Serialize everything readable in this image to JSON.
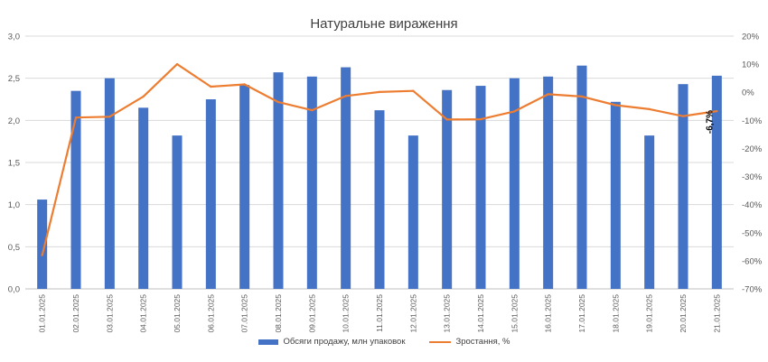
{
  "chart_data": {
    "type": "bar",
    "title": "Натуральне вираження",
    "categories": [
      "01.01.2025",
      "02.01.2025",
      "03.01.2025",
      "04.01.2025",
      "05.01.2025",
      "06.01.2025",
      "07.01.2025",
      "08.01.2025",
      "09.01.2025",
      "10.01.2025",
      "11.01.2025",
      "12.01.2025",
      "13.01.2025",
      "14.01.2025",
      "15.01.2025",
      "16.01.2025",
      "17.01.2025",
      "18.01.2025",
      "19.01.2025",
      "20.01.2025",
      "21.01.2025"
    ],
    "y_left": {
      "min": 0,
      "max": 3,
      "step": 0.5,
      "ticks": [
        "0,0",
        "0,5",
        "1,0",
        "1,5",
        "2,0",
        "2,5",
        "3,0"
      ]
    },
    "y_right": {
      "min": -70,
      "max": 20,
      "step": 10,
      "ticks": [
        "-70%",
        "-60%",
        "-50%",
        "-40%",
        "-30%",
        "-20%",
        "-10%",
        "0%",
        "10%",
        "20%"
      ]
    },
    "series": [
      {
        "name": "Обсяги продажу, млн упаковок",
        "type": "bar",
        "axis": "left",
        "color": "#4472C4",
        "values": [
          1.06,
          2.35,
          2.5,
          2.15,
          1.82,
          2.25,
          2.42,
          2.57,
          2.52,
          2.63,
          2.12,
          1.82,
          2.36,
          2.41,
          2.5,
          2.52,
          2.65,
          2.22,
          1.82,
          2.43,
          2.53
        ]
      },
      {
        "name": "Зростання, %",
        "type": "line",
        "axis": "right",
        "color": "#ED7D31",
        "values": [
          -58.0,
          -9.0,
          -8.7,
          -1.5,
          10.0,
          2.0,
          2.8,
          -3.5,
          -6.4,
          -1.3,
          0.1,
          0.5,
          -9.7,
          -9.6,
          -6.8,
          -0.7,
          -1.5,
          -4.6,
          -6.0,
          -8.5,
          -6.7
        ]
      }
    ],
    "annotations": [
      {
        "text": "-6,7%",
        "category_index": 20
      }
    ],
    "grid": true,
    "legend": "bottom"
  }
}
